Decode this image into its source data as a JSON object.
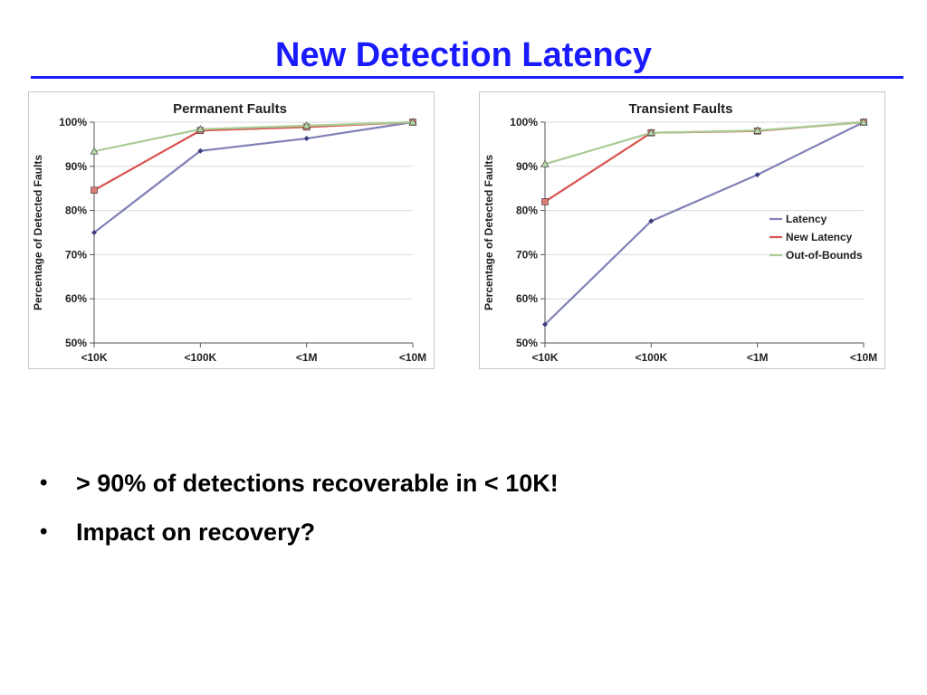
{
  "slide": {
    "title": "New Detection Latency",
    "title_color": "#1a1aff",
    "bullet_char": "•",
    "bullets": [
      "> 90% of detections recoverable in < 10K!",
      "Impact on recovery?"
    ]
  },
  "chart_data": [
    {
      "type": "line",
      "title": "Permanent Faults",
      "xlabel": "",
      "ylabel": "Percentage of Detected Faults",
      "categories": [
        "<10K",
        "<100K",
        "<1M",
        "<10M"
      ],
      "ylim": [
        50,
        100
      ],
      "yticks": [
        "50%",
        "60%",
        "70%",
        "80%",
        "90%",
        "100%"
      ],
      "grid": true,
      "legend": "none",
      "series": [
        {
          "name": "Latency",
          "color": "#8080b8",
          "values": [
            75,
            93.5,
            96.3,
            100
          ]
        },
        {
          "name": "New Latency",
          "color": "#d9534f",
          "values": [
            84.6,
            98.1,
            98.9,
            100
          ]
        },
        {
          "name": "Out-of-Bounds",
          "color": "#a8cc94",
          "values": [
            93.4,
            98.4,
            99.2,
            100
          ]
        }
      ]
    },
    {
      "type": "line",
      "title": "Transient Faults",
      "xlabel": "",
      "ylabel": "Percentage of Detected Faults",
      "categories": [
        "<10K",
        "<100K",
        "<1M",
        "<10M"
      ],
      "ylim": [
        50,
        100
      ],
      "yticks": [
        "50%",
        "60%",
        "70%",
        "80%",
        "90%",
        "100%"
      ],
      "grid": true,
      "legend": "right",
      "series": [
        {
          "name": "Latency",
          "color": "#8080b8",
          "values": [
            54.2,
            77.6,
            88.1,
            100
          ]
        },
        {
          "name": "New Latency",
          "color": "#d9534f",
          "values": [
            82,
            97.6,
            98,
            100
          ]
        },
        {
          "name": "Out-of-Bounds",
          "color": "#a8cc94",
          "values": [
            90.5,
            97.6,
            98.1,
            100
          ]
        }
      ]
    }
  ]
}
